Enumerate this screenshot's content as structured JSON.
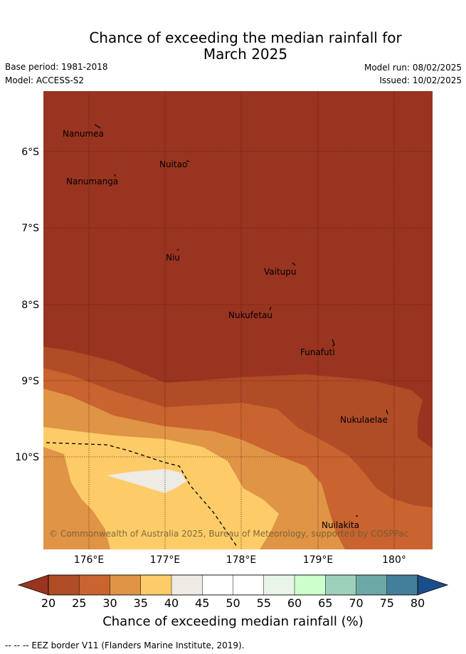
{
  "header": {
    "title_line1": "Chance of exceeding the median rainfall for",
    "title_line2": "March 2025",
    "base_period": "Base period: 1981-2018",
    "model": "Model: ACCESS-S2",
    "model_run": "Model run: 08/02/2025",
    "issued": "Issued: 10/02/2025"
  },
  "map": {
    "lat_labels": [
      "6°S",
      "7°S",
      "8°S",
      "9°S",
      "10°S"
    ],
    "lon_labels": [
      "176°E",
      "177°E",
      "178°E",
      "179°E",
      "180°"
    ],
    "islands": [
      "Nanumea",
      "Nuitao",
      "Nanumanga",
      "Niu",
      "Vaitupu",
      "Nukufetau",
      "Funafuti",
      "Nukulaelae",
      "Nuilakita"
    ],
    "copyright": "© Commonwealth of Australia 2025, Bureau of Meteorology, supported by COSPPac",
    "colors": {
      "c20": "#993420",
      "c25": "#b04c26",
      "c30": "#c9632f",
      "c35": "#e09446",
      "c40": "#fdcc68",
      "c45": "#eeeae4"
    }
  },
  "colorbar": {
    "ticks": [
      "20",
      "25",
      "30",
      "35",
      "40",
      "45",
      "50",
      "55",
      "60",
      "65",
      "70",
      "75",
      "80"
    ],
    "colors": [
      "#b04c26",
      "#c9632f",
      "#e09446",
      "#fdcc68",
      "#eeeae4",
      "#ffffff",
      "#ffffff",
      "#e8f5e8",
      "#ccffcc",
      "#9ed1bb",
      "#6ca8a6",
      "#427f9a"
    ],
    "low_color": "#993420",
    "high_color": "#1a4e8a",
    "title": "Chance of exceeding median rainfall (%)"
  },
  "legend": {
    "eez_line": "--  --  -- EEZ border V11 (Flanders Marine Institute, 2019)."
  }
}
